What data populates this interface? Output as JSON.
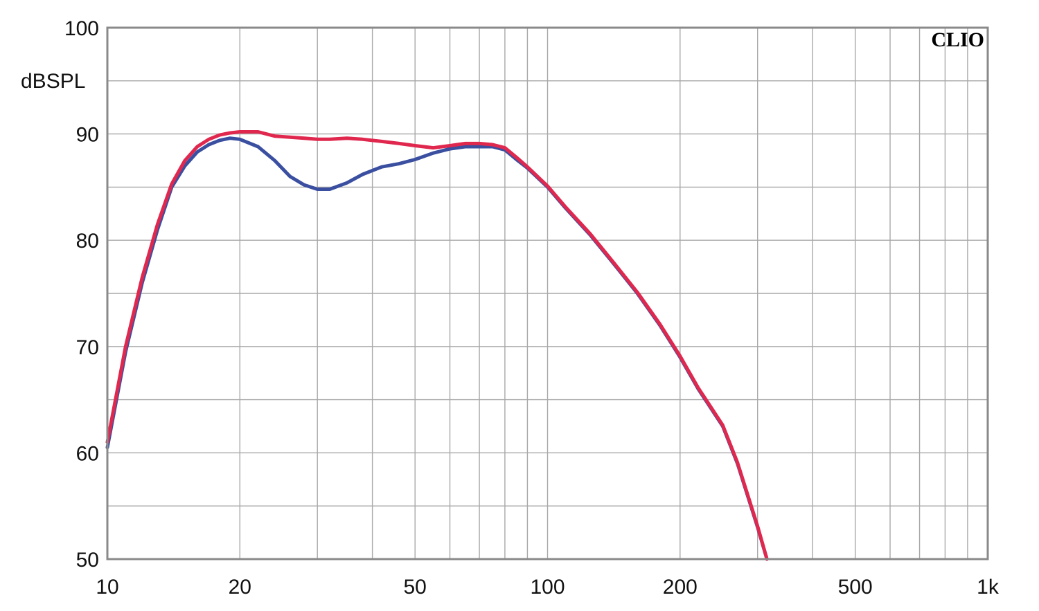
{
  "chart_data": {
    "type": "line",
    "brand": "CLIO",
    "ylabel": "dBSPL",
    "x_scale": "log",
    "xlim": [
      10,
      1000
    ],
    "ylim": [
      50,
      100
    ],
    "grid": true,
    "x_ticks": [
      {
        "value": 10,
        "label": "10"
      },
      {
        "value": 20,
        "label": "20"
      },
      {
        "value": 50,
        "label": "50"
      },
      {
        "value": 100,
        "label": "100"
      },
      {
        "value": 200,
        "label": "200"
      },
      {
        "value": 500,
        "label": "500"
      },
      {
        "value": 1000,
        "label": "1k"
      }
    ],
    "y_ticks": [
      {
        "value": 50,
        "label": "50"
      },
      {
        "value": 60,
        "label": "60"
      },
      {
        "value": 70,
        "label": "70"
      },
      {
        "value": 80,
        "label": "80"
      },
      {
        "value": 90,
        "label": "90"
      },
      {
        "value": 100,
        "label": "100"
      }
    ],
    "series": [
      {
        "color": "#3a4fa0",
        "x": [
          10,
          11,
          12,
          13,
          14,
          15,
          16,
          17,
          18,
          19,
          20,
          22,
          24,
          26,
          28,
          30,
          32,
          35,
          38,
          42,
          46,
          50,
          55,
          60,
          65,
          70,
          75,
          80,
          85,
          90,
          100,
          110,
          125,
          140,
          160,
          180,
          200,
          220,
          250,
          270,
          300,
          315
        ],
        "y": [
          60.5,
          69.5,
          76.0,
          81.0,
          85.0,
          87.0,
          88.3,
          89.0,
          89.4,
          89.6,
          89.5,
          88.8,
          87.5,
          86.0,
          85.2,
          84.8,
          84.8,
          85.4,
          86.2,
          86.9,
          87.2,
          87.6,
          88.2,
          88.6,
          88.8,
          88.8,
          88.8,
          88.5,
          87.6,
          86.8,
          85.0,
          83.0,
          80.5,
          78.0,
          75.0,
          72.0,
          69.0,
          66.0,
          62.5,
          59.0,
          53.0,
          50.0
        ]
      },
      {
        "color": "#e0284e",
        "x": [
          10,
          11,
          12,
          13,
          14,
          15,
          16,
          17,
          18,
          19,
          20,
          22,
          24,
          26,
          28,
          30,
          32,
          35,
          38,
          42,
          46,
          50,
          55,
          60,
          65,
          70,
          75,
          80,
          85,
          90,
          100,
          110,
          125,
          140,
          160,
          180,
          200,
          220,
          250,
          270,
          300,
          315
        ],
        "y": [
          61.0,
          70.0,
          76.5,
          81.5,
          85.3,
          87.5,
          88.8,
          89.5,
          89.9,
          90.1,
          90.2,
          90.2,
          89.8,
          89.7,
          89.6,
          89.5,
          89.5,
          89.6,
          89.5,
          89.3,
          89.1,
          88.9,
          88.7,
          88.9,
          89.1,
          89.1,
          89.0,
          88.7,
          87.8,
          86.9,
          85.1,
          83.1,
          80.6,
          78.1,
          75.1,
          72.1,
          69.1,
          66.1,
          62.6,
          59.1,
          53.1,
          50.0
        ]
      }
    ]
  }
}
